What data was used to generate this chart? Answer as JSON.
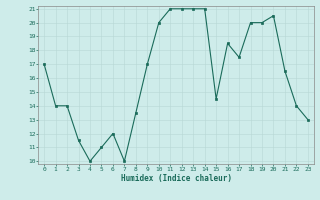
{
  "x": [
    0,
    1,
    2,
    3,
    4,
    5,
    6,
    7,
    8,
    9,
    10,
    11,
    12,
    13,
    14,
    15,
    16,
    17,
    18,
    19,
    20,
    21,
    22,
    23
  ],
  "y": [
    17,
    14,
    14,
    11.5,
    10,
    11,
    12,
    10,
    13.5,
    17,
    20,
    21,
    21,
    21,
    21,
    14.5,
    18.5,
    17.5,
    20,
    20,
    20.5,
    16.5,
    14,
    13
  ],
  "xlabel": "Humidex (Indice chaleur)",
  "ylim": [
    10,
    21
  ],
  "xlim": [
    -0.5,
    23.5
  ],
  "yticks": [
    10,
    11,
    12,
    13,
    14,
    15,
    16,
    17,
    18,
    19,
    20,
    21
  ],
  "xticks": [
    0,
    1,
    2,
    3,
    4,
    5,
    6,
    7,
    8,
    9,
    10,
    11,
    12,
    13,
    14,
    15,
    16,
    17,
    18,
    19,
    20,
    21,
    22,
    23
  ],
  "line_color": "#1a6b5a",
  "marker_color": "#1a6b5a",
  "bg_color": "#ceecea",
  "grid_color": "#b8d8d5",
  "figsize": [
    3.2,
    2.0
  ],
  "dpi": 100
}
